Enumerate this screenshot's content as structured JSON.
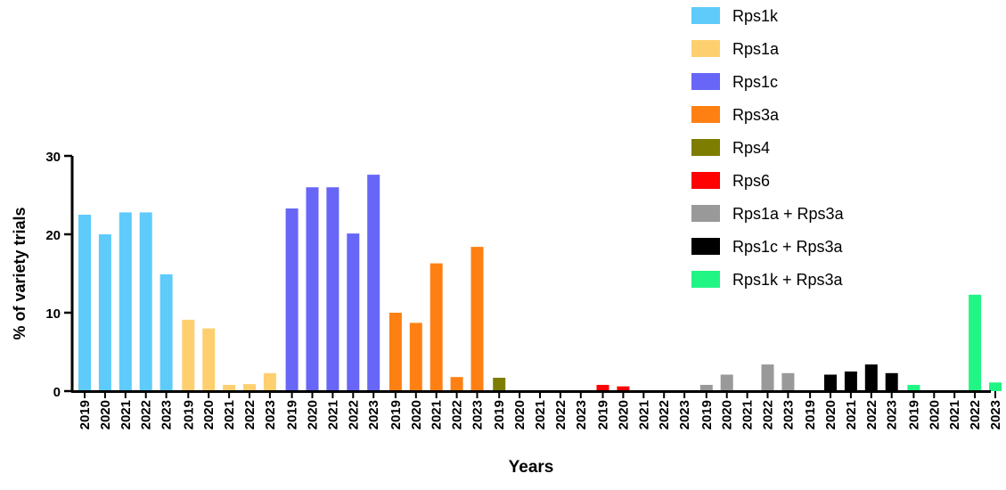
{
  "chart_data": {
    "type": "bar",
    "xlabel": "Years",
    "ylabel": "% of variety trials",
    "ylim": [
      0,
      30
    ],
    "yticks": [
      0,
      10,
      20,
      30
    ],
    "categories": [
      "2019",
      "2020",
      "2021",
      "2022",
      "2023"
    ],
    "legend_position": "top-right",
    "series": [
      {
        "name": "Rps1k",
        "color": "#5ECBFA",
        "values": [
          22.5,
          20.0,
          22.8,
          22.8,
          14.9
        ]
      },
      {
        "name": "Rps1a",
        "color": "#FECF6F",
        "values": [
          9.1,
          8.0,
          0.8,
          0.9,
          2.3
        ]
      },
      {
        "name": "Rps1c",
        "color": "#6766F6",
        "values": [
          23.3,
          26.0,
          26.0,
          20.1,
          27.6
        ]
      },
      {
        "name": "Rps3a",
        "color": "#FE8013",
        "values": [
          10.0,
          8.7,
          16.3,
          1.8,
          18.4
        ]
      },
      {
        "name": "Rps4",
        "color": "#7D7D02",
        "values": [
          1.7,
          0,
          0,
          0,
          0
        ]
      },
      {
        "name": "Rps6",
        "color": "#FE0101",
        "values": [
          0.8,
          0.6,
          0,
          0,
          0
        ]
      },
      {
        "name": "Rps1a + Rps3a",
        "color": "#999999",
        "values": [
          0.8,
          2.1,
          0,
          3.4,
          2.3
        ]
      },
      {
        "name": "Rps1c + Rps3a",
        "color": "#000000",
        "values": [
          0,
          2.1,
          2.5,
          3.4,
          2.3
        ]
      },
      {
        "name": "Rps1k + Rps3a",
        "color": "#21F584",
        "values": [
          0.8,
          0,
          0,
          12.3,
          1.1
        ]
      }
    ]
  }
}
